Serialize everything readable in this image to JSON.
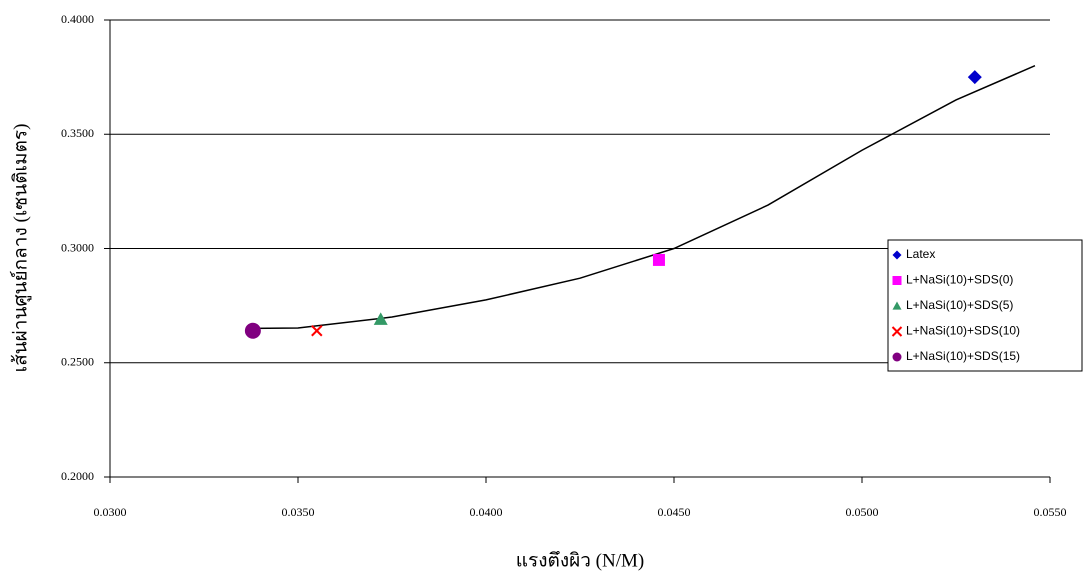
{
  "chart_data": {
    "type": "scatter",
    "xlabel": "แรงตึงผิว (N/M)",
    "ylabel": "เส้นผ่านศูนย์กลาง (เซนติเมตร)",
    "xlim": [
      0.03,
      0.055
    ],
    "ylim": [
      0.2,
      0.4
    ],
    "xticks": [
      {
        "value": 0.03,
        "label": "0.0300"
      },
      {
        "value": 0.035,
        "label": "0.0350"
      },
      {
        "value": 0.04,
        "label": "0.0400"
      },
      {
        "value": 0.045,
        "label": "0.0450"
      },
      {
        "value": 0.05,
        "label": "0.0500"
      },
      {
        "value": 0.055,
        "label": "0.0550"
      }
    ],
    "yticks": [
      {
        "value": 0.2,
        "label": "0.2000"
      },
      {
        "value": 0.25,
        "label": "0.2500"
      },
      {
        "value": 0.3,
        "label": "0.3000"
      },
      {
        "value": 0.35,
        "label": "0.3500"
      },
      {
        "value": 0.4,
        "label": "0.4000"
      }
    ],
    "grid": true,
    "legend": "right",
    "series": [
      {
        "name": "Latex",
        "color": "#0000cc",
        "marker": "diamond",
        "x": [
          0.053
        ],
        "values": [
          0.375
        ]
      },
      {
        "name": "L+NaSi(10)+SDS(0)",
        "color": "#ff00ff",
        "marker": "square",
        "x": [
          0.0446
        ],
        "values": [
          0.295
        ]
      },
      {
        "name": "L+NaSi(10)+SDS(5)",
        "color": "#339966",
        "marker": "triangle",
        "x": [
          0.0372
        ],
        "values": [
          0.269
        ]
      },
      {
        "name": "L+NaSi(10)+SDS(10)",
        "color": "#ff0000",
        "marker": "cross",
        "x": [
          0.0355
        ],
        "values": [
          0.264
        ]
      },
      {
        "name": "L+NaSi(10)+SDS(15)",
        "color": "#800080",
        "marker": "circle",
        "x": [
          0.0338
        ],
        "values": [
          0.264
        ]
      }
    ],
    "trendline": {
      "color": "#000000",
      "x": [
        0.0337,
        0.035,
        0.0375,
        0.04,
        0.0425,
        0.045,
        0.0475,
        0.05,
        0.0525,
        0.0546
      ],
      "y": [
        0.265,
        0.2652,
        0.27,
        0.2775,
        0.287,
        0.3,
        0.319,
        0.343,
        0.365,
        0.38
      ]
    }
  }
}
